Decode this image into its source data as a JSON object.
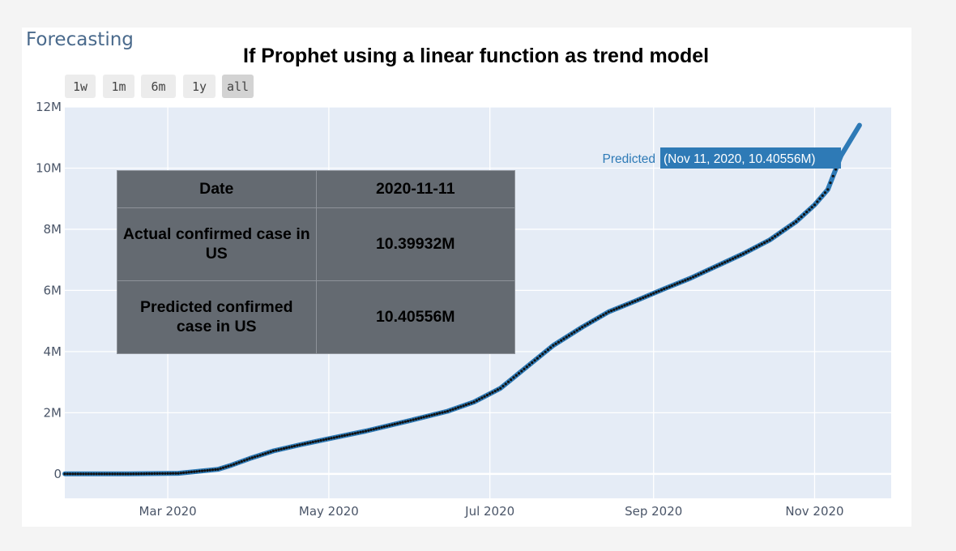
{
  "app_title": "Forecasting",
  "overlay_title": "If Prophet using a linear function as trend model",
  "range_selector": {
    "buttons": [
      "1w",
      "1m",
      "6m",
      "1y",
      "all"
    ],
    "active": "all"
  },
  "colors": {
    "plot_bg": "#e5ecf6",
    "grid": "#ffffff",
    "predicted_line": "#2e7ab6",
    "actual_points": "#111111",
    "axis_text": "#4a5568",
    "table_bg": "#646a71",
    "tooltip_bg": "#2e7ab6"
  },
  "info_table": {
    "rows": [
      [
        "Date",
        "2020-11-11"
      ],
      [
        "Actual confirmed case in US",
        "10.39932M"
      ],
      [
        "Predicted confirmed case in US",
        "10.40556M"
      ]
    ]
  },
  "tooltip": {
    "series": "Predicted",
    "text": "(Nov 11, 2020, 10.40556M)"
  },
  "chart_data": {
    "type": "line",
    "title": "If Prophet using a linear function as trend model",
    "xlabel": "",
    "ylabel": "",
    "xlim": [
      "2020-01-22",
      "2020-11-30"
    ],
    "ylim": [
      -800000,
      12000000
    ],
    "x_ticks": [
      "2020-03-01",
      "2020-05-01",
      "2020-07-01",
      "2020-09-01",
      "2020-11-01"
    ],
    "x_tick_labels": [
      "Mar 2020",
      "May 2020",
      "Jul 2020",
      "Sep 2020",
      "Nov 2020"
    ],
    "y_ticks": [
      0,
      2000000,
      4000000,
      6000000,
      8000000,
      10000000,
      12000000
    ],
    "y_tick_labels": [
      "0",
      "2M",
      "4M",
      "6M",
      "8M",
      "10M",
      "12M"
    ],
    "grid": true,
    "series": [
      {
        "name": "Predicted",
        "x": [
          "2020-01-22",
          "2020-02-15",
          "2020-03-05",
          "2020-03-20",
          "2020-03-25",
          "2020-04-01",
          "2020-04-10",
          "2020-04-20",
          "2020-05-01",
          "2020-05-15",
          "2020-06-01",
          "2020-06-15",
          "2020-06-25",
          "2020-07-05",
          "2020-07-15",
          "2020-07-25",
          "2020-08-05",
          "2020-08-15",
          "2020-08-25",
          "2020-09-05",
          "2020-09-15",
          "2020-09-25",
          "2020-10-05",
          "2020-10-15",
          "2020-10-25",
          "2020-11-01",
          "2020-11-06",
          "2020-11-11",
          "2020-11-18"
        ],
        "y": [
          0,
          0,
          20000,
          150000,
          280000,
          500000,
          750000,
          950000,
          1150000,
          1400000,
          1750000,
          2050000,
          2350000,
          2800000,
          3500000,
          4200000,
          4800000,
          5300000,
          5650000,
          6050000,
          6400000,
          6800000,
          7200000,
          7650000,
          8250000,
          8800000,
          9300000,
          10405560,
          11400000
        ]
      },
      {
        "name": "Actual",
        "x": [
          "2020-01-22",
          "2020-02-15",
          "2020-03-05",
          "2020-03-20",
          "2020-03-25",
          "2020-04-01",
          "2020-04-10",
          "2020-04-20",
          "2020-05-01",
          "2020-05-15",
          "2020-06-01",
          "2020-06-15",
          "2020-06-25",
          "2020-07-05",
          "2020-07-15",
          "2020-07-25",
          "2020-08-05",
          "2020-08-15",
          "2020-08-25",
          "2020-09-05",
          "2020-09-15",
          "2020-09-25",
          "2020-10-05",
          "2020-10-15",
          "2020-10-25",
          "2020-11-01",
          "2020-11-06",
          "2020-11-11"
        ],
        "y": [
          0,
          0,
          20000,
          150000,
          280000,
          500000,
          750000,
          950000,
          1150000,
          1400000,
          1750000,
          2050000,
          2350000,
          2800000,
          3500000,
          4200000,
          4800000,
          5300000,
          5650000,
          6050000,
          6400000,
          6800000,
          7200000,
          7650000,
          8250000,
          8800000,
          9300000,
          10399320
        ]
      }
    ]
  }
}
